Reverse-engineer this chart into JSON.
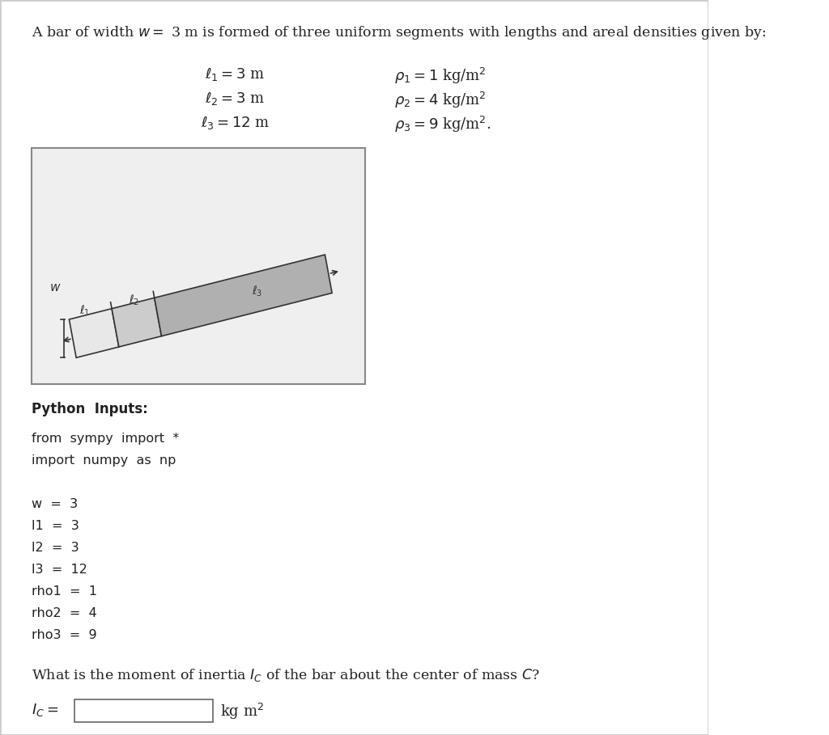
{
  "title_text": "A bar of width $w = $ 3 m is formed of three uniform segments with lengths and areal densities given by:",
  "eq_l1": "$\\ell_1 = 3$ m",
  "eq_l2": "$\\ell_2 = 3$ m",
  "eq_l3": "$\\ell_3 = 12$ m",
  "eq_rho1": "$\\rho_1 = 1$ kg/m$^2$",
  "eq_rho2": "$\\rho_2 = 4$ kg/m$^2$",
  "eq_rho3": "$\\rho_3 = 9$ kg/m$^2$.",
  "python_inputs_label": "Python  Inputs:",
  "code_lines": [
    "from  sympy  import  *",
    "import  numpy  as  np",
    "",
    "w  =  3",
    "l1  =  3",
    "l2  =  3",
    "l3  =  12",
    "rho1  =  1",
    "rho2  =  4",
    "rho3  =  9"
  ],
  "question_text": "What is the moment of inertia $I_C$ of the bar about the center of mass $C$?",
  "answer_label": "$I_C = $",
  "answer_units": "kg m$^2$",
  "page_bg": "#ffffff",
  "bar_seg1_color": "#e8e8e8",
  "bar_seg2_color": "#cccccc",
  "bar_seg3_color": "#b0b0b0",
  "bar_outline": "#333333",
  "figure_box_bg": "#efefef"
}
